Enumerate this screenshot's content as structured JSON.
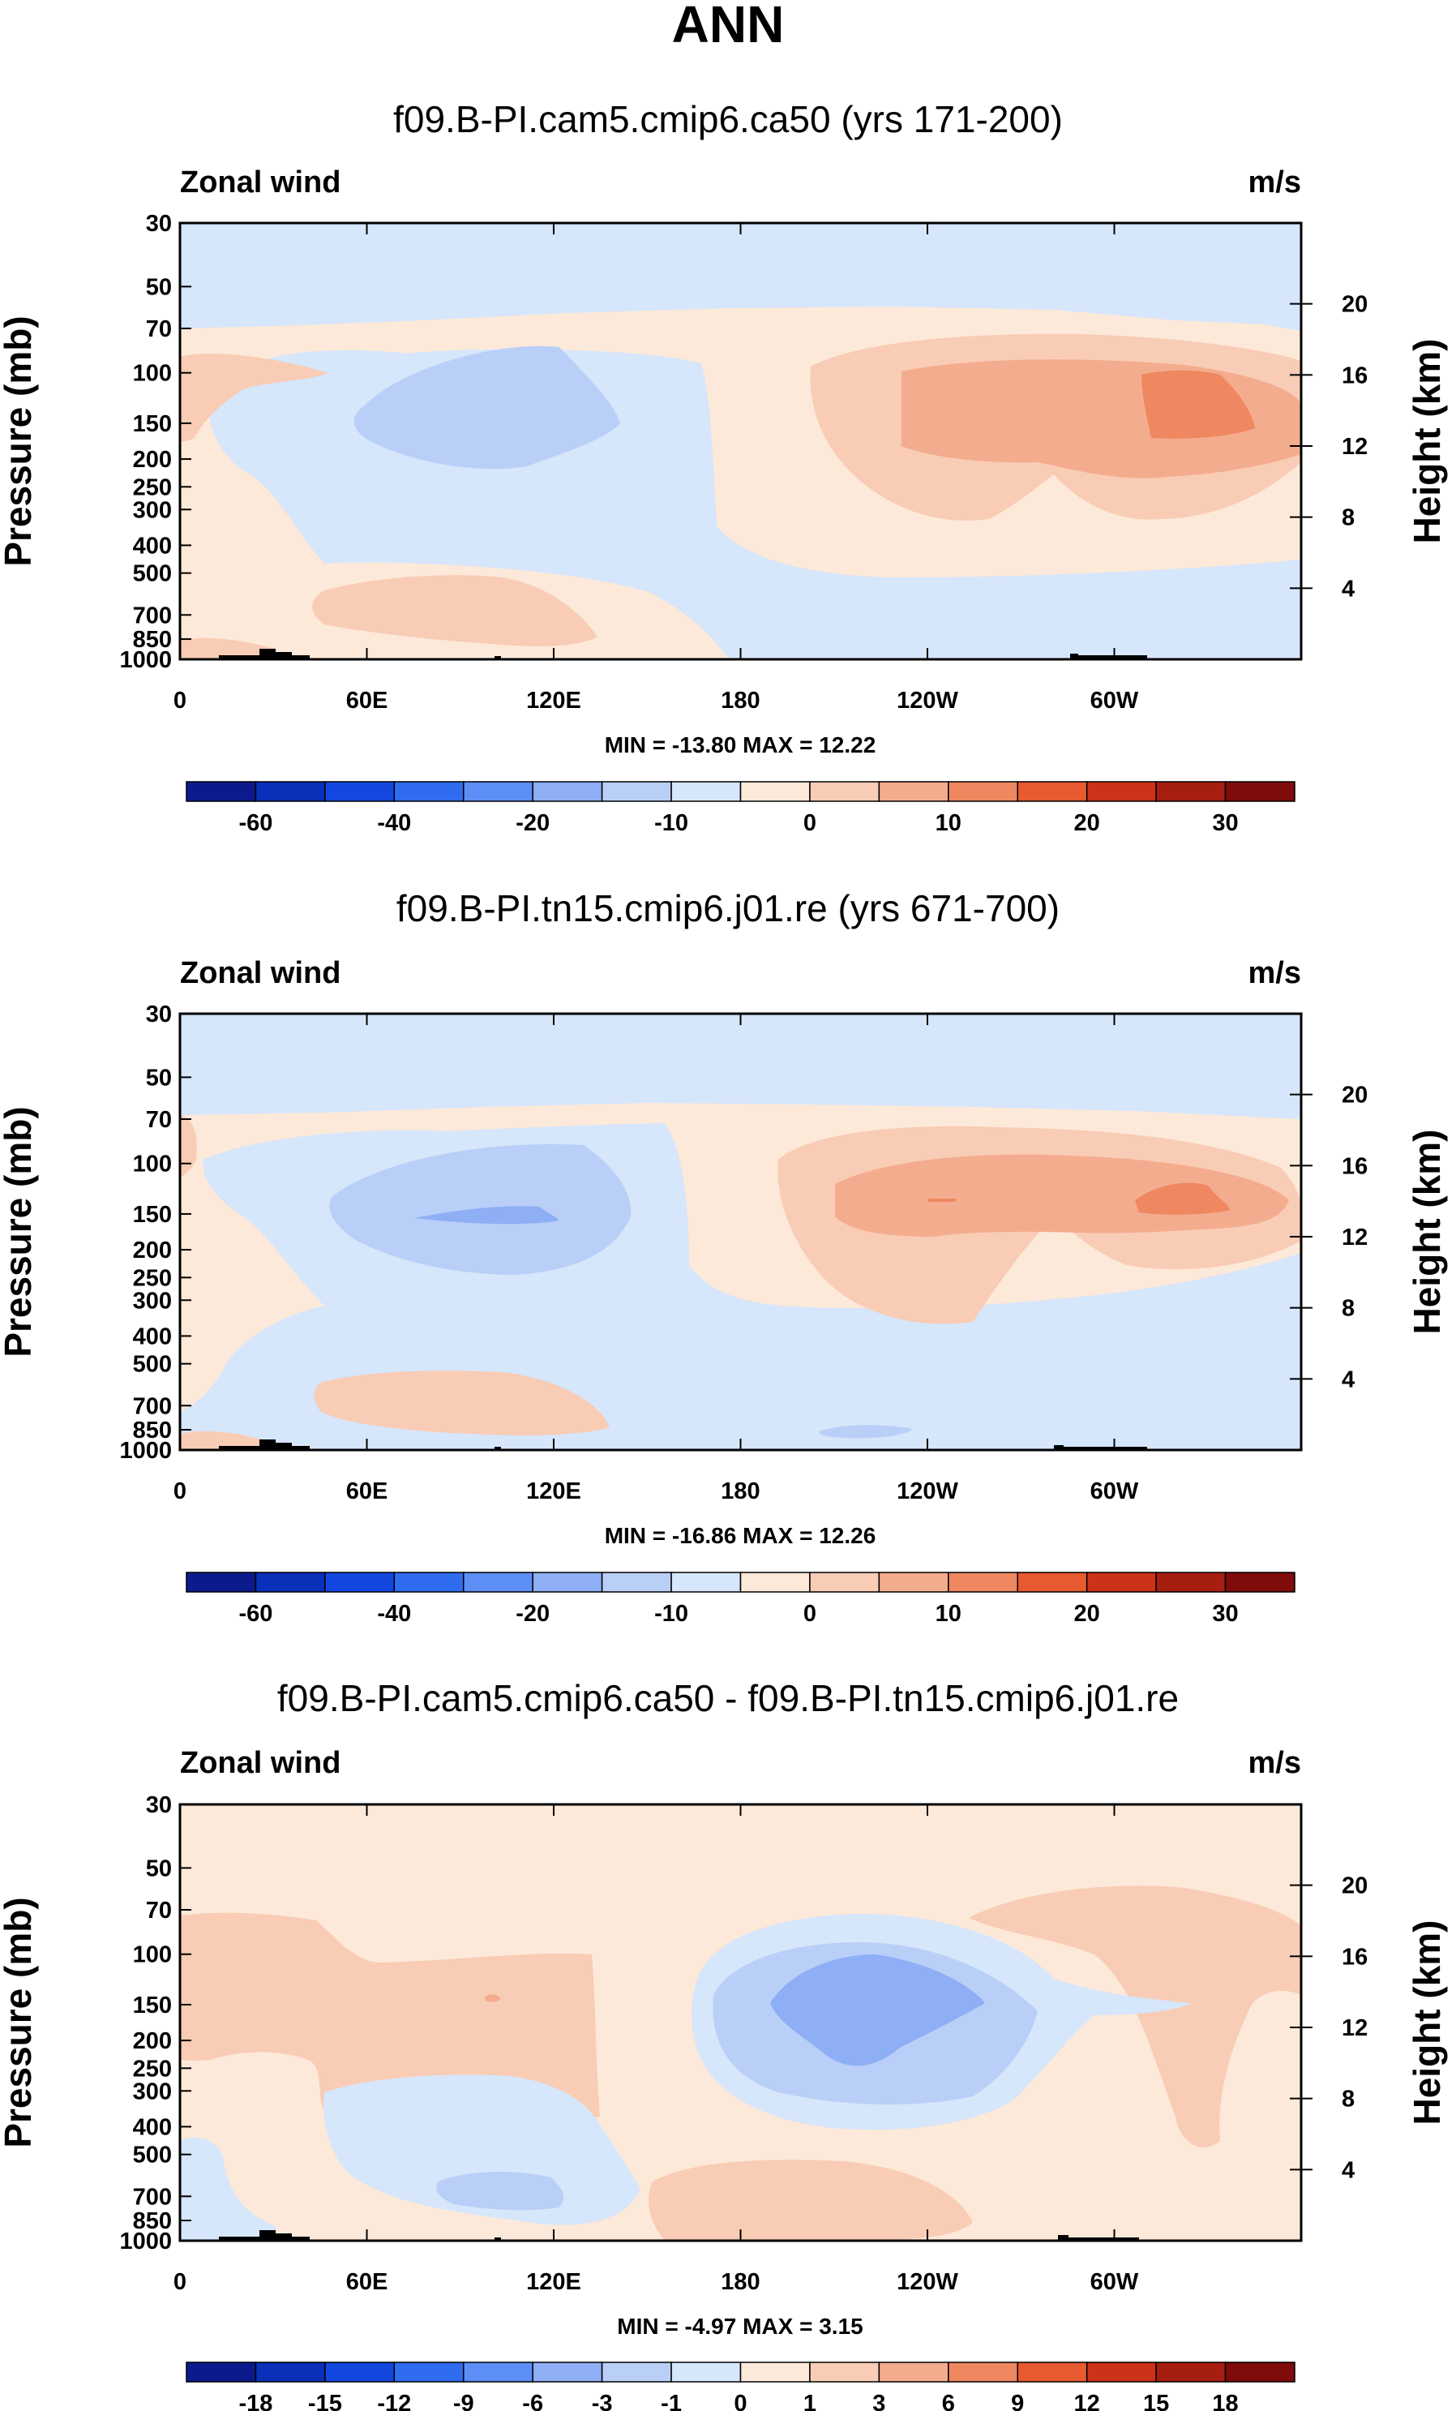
{
  "page": {
    "season": "ANN"
  },
  "colors": {
    "field": [
      "#0b1a8c",
      "#0a2fb8",
      "#1248e0",
      "#2f6cf0",
      "#5d8ef5",
      "#8eaef5",
      "#b9cff7",
      "#d6e6fb",
      "#fde9d9",
      "#f9ccb5",
      "#f4ac8f",
      "#ef8760",
      "#e85a30",
      "#cc3218",
      "#a61e10",
      "#7f0b0b"
    ]
  },
  "chart_data": [
    {
      "type": "contour",
      "title": "f09.B-PI.cam5.cmip6.ca50 (yrs 171-200)",
      "left_label": "Zonal wind",
      "right_label": "m/s",
      "ylabel": "Pressure (mb)",
      "y2label": "Height (km)",
      "x_ticks": [
        "0",
        "60E",
        "120E",
        "180",
        "120W",
        "60W"
      ],
      "y_ticks": [
        "30",
        "50",
        "70",
        "100",
        "150",
        "200",
        "250",
        "300",
        "400",
        "500",
        "700",
        "850",
        "1000"
      ],
      "y2_ticks": [
        "20",
        "16",
        "12",
        "8",
        "4"
      ],
      "stats": "MIN = -13.80  MAX =  12.22",
      "colorbar_labels": [
        "-60",
        "-40",
        "-20",
        "-10",
        "0",
        "10",
        "20",
        "30"
      ],
      "range": [
        -13.8,
        12.22
      ]
    },
    {
      "type": "contour",
      "title": "f09.B-PI.tn15.cmip6.j01.re (yrs 671-700)",
      "left_label": "Zonal wind",
      "right_label": "m/s",
      "ylabel": "Pressure (mb)",
      "y2label": "Height (km)",
      "x_ticks": [
        "0",
        "60E",
        "120E",
        "180",
        "120W",
        "60W"
      ],
      "y_ticks": [
        "30",
        "50",
        "70",
        "100",
        "150",
        "200",
        "250",
        "300",
        "400",
        "500",
        "700",
        "850",
        "1000"
      ],
      "y2_ticks": [
        "20",
        "16",
        "12",
        "8",
        "4"
      ],
      "stats": "MIN = -16.86  MAX =  12.26",
      "colorbar_labels": [
        "-60",
        "-40",
        "-20",
        "-10",
        "0",
        "10",
        "20",
        "30"
      ],
      "range": [
        -16.86,
        12.26
      ]
    },
    {
      "type": "contour",
      "title": "f09.B-PI.cam5.cmip6.ca50 - f09.B-PI.tn15.cmip6.j01.re",
      "left_label": "Zonal wind",
      "right_label": "m/s",
      "ylabel": "Pressure (mb)",
      "y2label": "Height (km)",
      "x_ticks": [
        "0",
        "60E",
        "120E",
        "180",
        "120W",
        "60W"
      ],
      "y_ticks": [
        "30",
        "50",
        "70",
        "100",
        "150",
        "200",
        "250",
        "300",
        "400",
        "500",
        "700",
        "850",
        "1000"
      ],
      "y2_ticks": [
        "20",
        "16",
        "12",
        "8",
        "4"
      ],
      "stats": "MIN = -4.97  MAX =  3.15",
      "colorbar_labels": [
        "-18",
        "-15",
        "-12",
        "-9",
        "-6",
        "-3",
        "-1",
        "0",
        "1",
        "3",
        "6",
        "9",
        "12",
        "15",
        "18"
      ],
      "range": [
        -4.97,
        3.15
      ]
    }
  ]
}
